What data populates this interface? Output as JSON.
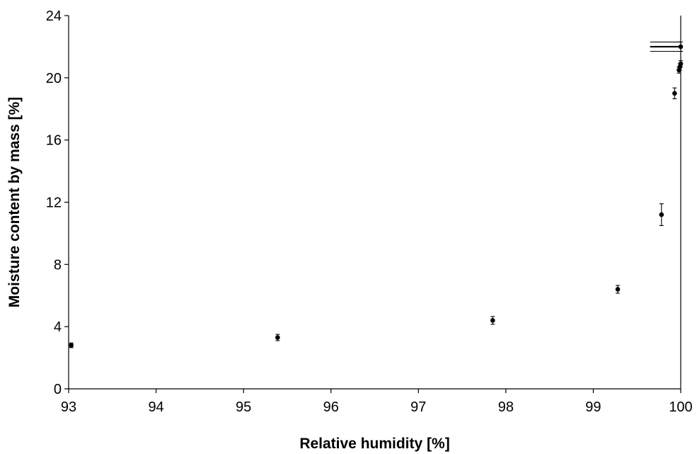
{
  "chart_data": {
    "type": "scatter",
    "xlabel": "Relative humidity [%]",
    "ylabel": "Moisture content by mass [%]",
    "xlim": [
      93,
      100
    ],
    "ylim": [
      0,
      24
    ],
    "x_ticks": [
      "93",
      "94",
      "95",
      "96",
      "97",
      "98",
      "99",
      "100"
    ],
    "y_ticks": [
      "0",
      "4",
      "8",
      "12",
      "16",
      "20",
      "24"
    ],
    "grid": false,
    "legend": "none",
    "marker_color": "#000000",
    "points": [
      {
        "x": 93.03,
        "y": 2.8,
        "err_y": 0.15
      },
      {
        "x": 95.39,
        "y": 3.3,
        "err_y": 0.2
      },
      {
        "x": 97.85,
        "y": 4.4,
        "err_y": 0.25
      },
      {
        "x": 99.28,
        "y": 6.4,
        "err_y": 0.25
      },
      {
        "x": 99.78,
        "y": 11.2,
        "err_y": 0.7
      },
      {
        "x": 99.93,
        "y": 19.0,
        "err_y": 0.35
      },
      {
        "x": 99.98,
        "y": 20.5,
        "err_y": 0.2
      },
      {
        "x": 99.99,
        "y": 20.7,
        "err_y": 0.2
      },
      {
        "x": 100.0,
        "y": 20.9,
        "err_y": 0.2
      },
      {
        "x": 100.0,
        "y": 22.0,
        "err_y": 0.3,
        "err_x": 0.35
      }
    ]
  }
}
